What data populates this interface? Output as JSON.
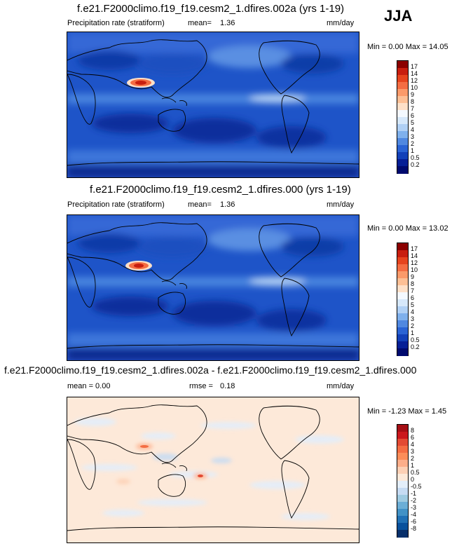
{
  "season": "JJA",
  "panels": [
    {
      "id": "panel-1",
      "title": "f.e21.F2000climo.f19_f19.cesm2_1.dfires.002a (yrs 1-19)",
      "left_label": "Precipitation rate (stratiform)",
      "mid_label": "mean=",
      "mid_value": "1.36",
      "units": "mm/day",
      "minmax": "Min =   0.00 Max =  14.05",
      "colorbar": {
        "labels": [
          "17",
          "14",
          "12",
          "10",
          "9",
          "8",
          "7",
          "6",
          "5",
          "4",
          "3",
          "2",
          "1",
          "0.5",
          "0.2"
        ],
        "colors": [
          "#8b0000",
          "#c81e0f",
          "#e6441e",
          "#f46d43",
          "#fb9a6a",
          "#fdbf95",
          "#fee0c8",
          "#f4f9ff",
          "#d6e8fb",
          "#b0d0f5",
          "#7fb0ec",
          "#5088e0",
          "#2a63d4",
          "#1240b8",
          "#061f96",
          "#000a6e"
        ]
      }
    },
    {
      "id": "panel-2",
      "title": "f.e21.F2000climo.f19_f19.cesm2_1.dfires.000 (yrs 1-19)",
      "left_label": "Precipitation rate (stratiform)",
      "mid_label": "mean=",
      "mid_value": "1.36",
      "units": "mm/day",
      "minmax": "Min =   0.00 Max =  13.02",
      "colorbar": {
        "labels": [
          "17",
          "14",
          "12",
          "10",
          "9",
          "8",
          "7",
          "6",
          "5",
          "4",
          "3",
          "2",
          "1",
          "0.5",
          "0.2"
        ],
        "colors": [
          "#8b0000",
          "#c81e0f",
          "#e6441e",
          "#f46d43",
          "#fb9a6a",
          "#fdbf95",
          "#fee0c8",
          "#f4f9ff",
          "#d6e8fb",
          "#b0d0f5",
          "#7fb0ec",
          "#5088e0",
          "#2a63d4",
          "#1240b8",
          "#061f96",
          "#000a6e"
        ]
      }
    },
    {
      "id": "panel-3",
      "title": "f.e21.F2000climo.f19_f19.cesm2_1.dfires.002a - f.e21.F2000climo.f19_f19.cesm2_1.dfires.000",
      "left_label": "mean =   0.00",
      "mid_label": "rmse =",
      "mid_value": "0.18",
      "units": "mm/day",
      "minmax": "Min =  -1.23 Max =   1.45",
      "colorbar": {
        "labels": [
          "8",
          "6",
          "4",
          "3",
          "2",
          "1",
          "0.5",
          "0",
          "-0.5",
          "-1",
          "-2",
          "-3",
          "-4",
          "-6",
          "-8"
        ],
        "colors": [
          "#a50f15",
          "#cb181d",
          "#e34a33",
          "#f46d43",
          "#fc8d59",
          "#fdae8a",
          "#fdd0b5",
          "#fde9d9",
          "#e3eefa",
          "#c6dbf3",
          "#9ecae1",
          "#6baed6",
          "#4292c6",
          "#2171b5",
          "#08519c",
          "#08306b"
        ]
      }
    }
  ],
  "chart_data": [
    {
      "type": "heatmap",
      "title": "f.e21.F2000climo.f19_f19.cesm2_1.dfires.002a (yrs 1-19)",
      "variable": "Precipitation rate (stratiform)",
      "season": "JJA",
      "mean": 1.36,
      "units": "mm/day",
      "min": 0.0,
      "max": 14.05,
      "levels": [
        0.2,
        0.5,
        1,
        2,
        3,
        4,
        5,
        6,
        7,
        8,
        9,
        10,
        12,
        14,
        17
      ]
    },
    {
      "type": "heatmap",
      "title": "f.e21.F2000climo.f19_f19.cesm2_1.dfires.000 (yrs 1-19)",
      "variable": "Precipitation rate (stratiform)",
      "season": "JJA",
      "mean": 1.36,
      "units": "mm/day",
      "min": 0.0,
      "max": 13.02,
      "levels": [
        0.2,
        0.5,
        1,
        2,
        3,
        4,
        5,
        6,
        7,
        8,
        9,
        10,
        12,
        14,
        17
      ]
    },
    {
      "type": "heatmap",
      "title": "f.e21.F2000climo.f19_f19.cesm2_1.dfires.002a - f.e21.F2000climo.f19_f19.cesm2_1.dfires.000",
      "season": "JJA",
      "mean": 0.0,
      "rmse": 0.18,
      "units": "mm/day",
      "min": -1.23,
      "max": 1.45,
      "levels": [
        -8,
        -6,
        -4,
        -3,
        -2,
        -1,
        -0.5,
        0,
        0.5,
        1,
        2,
        3,
        4,
        6,
        8
      ]
    }
  ]
}
